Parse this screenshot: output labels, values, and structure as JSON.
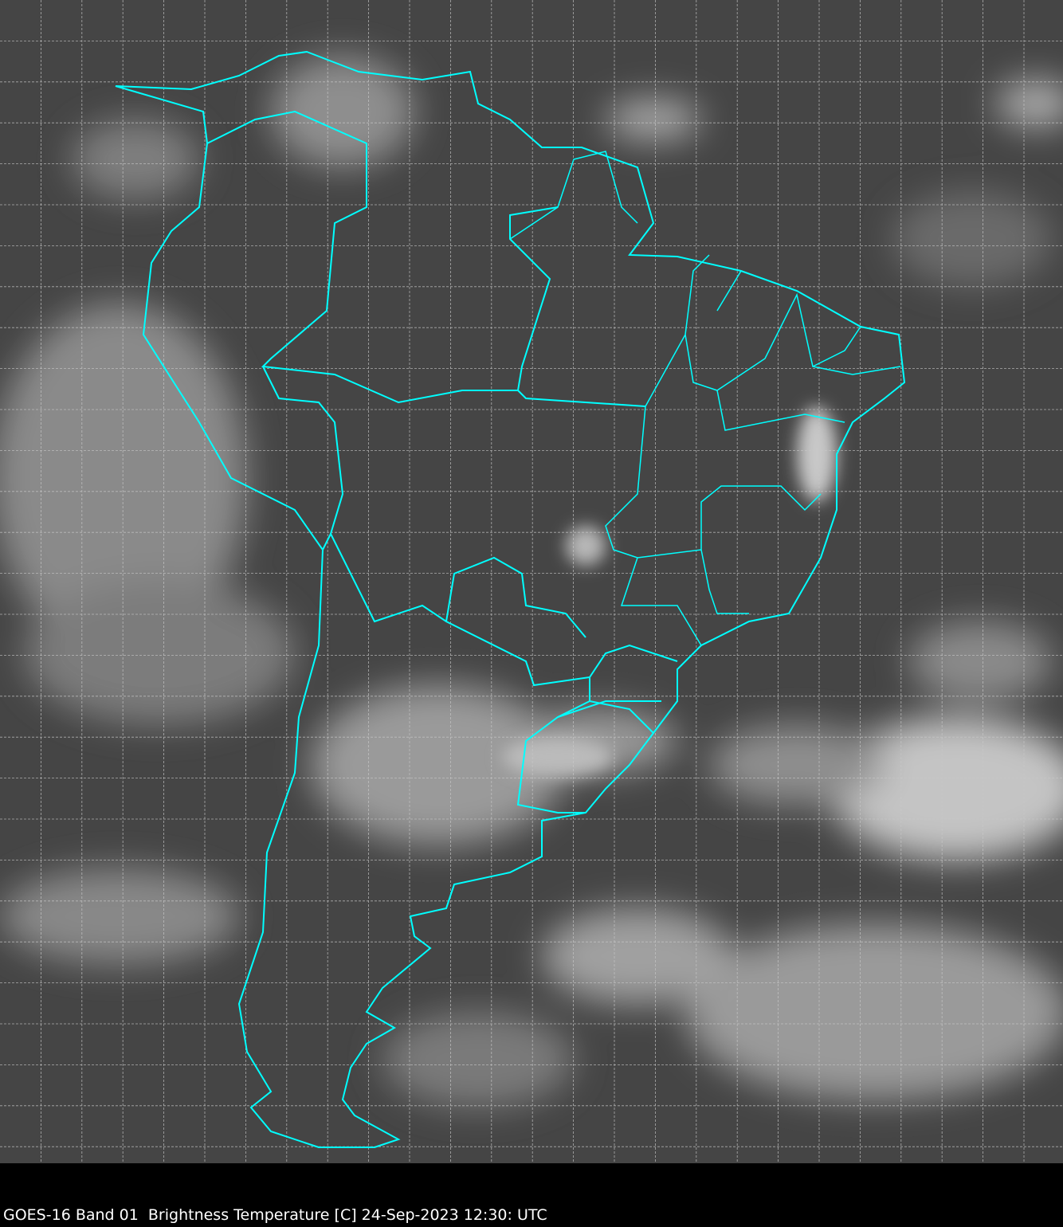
{
  "caption": "GOES-16 Band 01  Brightness Temperature [C] 24-Sep-2023 12:30: UTC",
  "colors": {
    "background": "#454545",
    "borders": "#00ffff",
    "gridlines": "#c8c8c8",
    "caption_bar": "#000000",
    "caption_text": "#ffffff"
  },
  "map": {
    "type": "satellite-image",
    "region": "South America",
    "gridlines": true,
    "overlay": "coastlines and political borders"
  }
}
